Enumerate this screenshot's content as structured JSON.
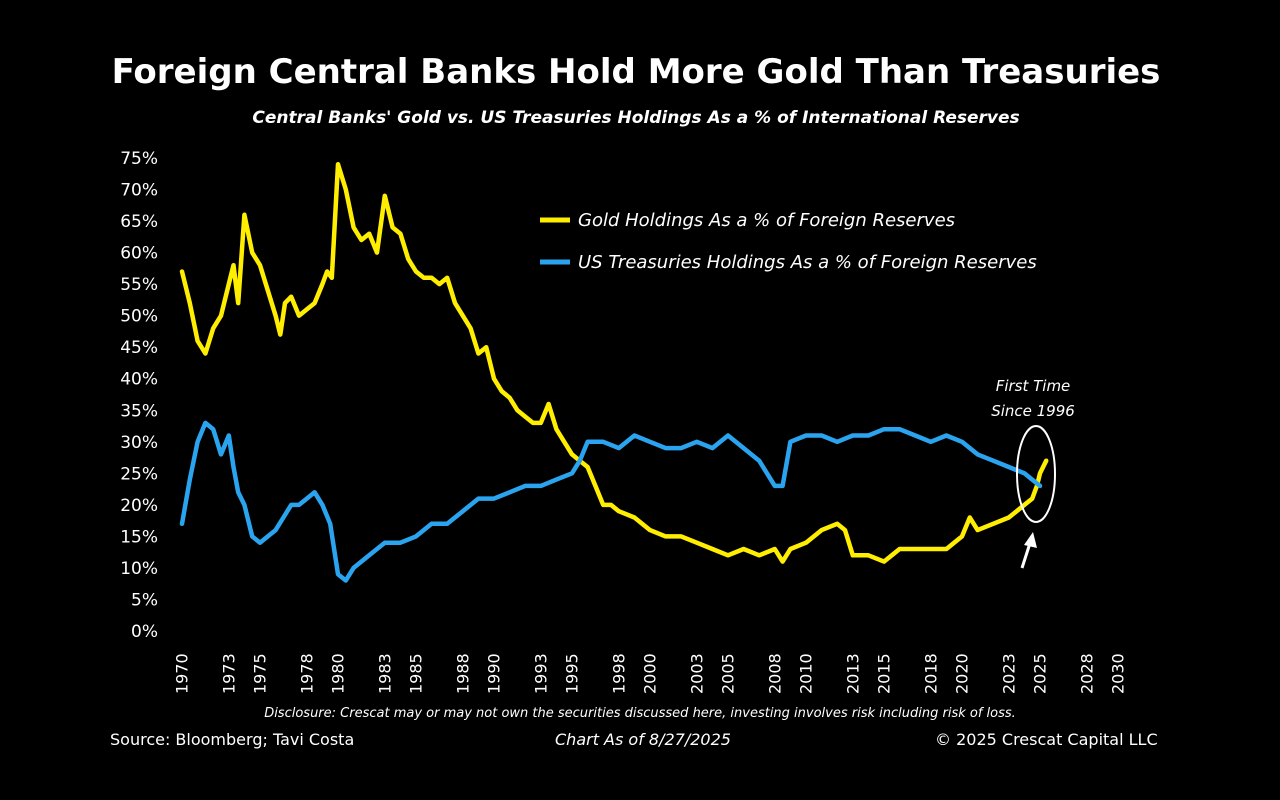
{
  "chart_data": {
    "type": "line",
    "title": "Foreign Central Banks Hold More Gold Than Treasuries",
    "subtitle": "Central Banks' Gold vs. US Treasuries Holdings As a % of International Reserves",
    "xlabel": "",
    "ylabel": "",
    "xlim": [
      1970,
      2030
    ],
    "ylim": [
      0,
      75
    ],
    "x_ticks": [
      "1970",
      "1973",
      "1975",
      "1978",
      "1980",
      "1983",
      "1985",
      "1988",
      "1990",
      "1993",
      "1995",
      "1998",
      "2000",
      "2003",
      "2005",
      "2008",
      "2010",
      "2013",
      "2015",
      "2018",
      "2020",
      "2023",
      "2025",
      "2028",
      "2030"
    ],
    "y_ticks": [
      "0%",
      "5%",
      "10%",
      "15%",
      "20%",
      "25%",
      "30%",
      "35%",
      "40%",
      "45%",
      "50%",
      "55%",
      "60%",
      "65%",
      "70%",
      "75%"
    ],
    "legend_position": "top-right",
    "series": [
      {
        "name": "Gold Holdings As a % of Foreign Reserves",
        "color": "#ffee00",
        "x": [
          1970,
          1970.5,
          1971,
          1971.5,
          1972,
          1972.5,
          1973,
          1973.3,
          1973.6,
          1974,
          1974.5,
          1975,
          1975.5,
          1976,
          1976.3,
          1976.6,
          1977,
          1977.5,
          1978,
          1978.5,
          1979,
          1979.3,
          1979.6,
          1980,
          1980.5,
          1981,
          1981.5,
          1982,
          1982.5,
          1983,
          1983.5,
          1984,
          1984.5,
          1985,
          1985.5,
          1986,
          1986.5,
          1987,
          1987.5,
          1988,
          1988.5,
          1989,
          1989.5,
          1990,
          1990.5,
          1991,
          1991.5,
          1992,
          1992.5,
          1993,
          1993.5,
          1994,
          1994.5,
          1995,
          1995.5,
          1996,
          1996.5,
          1997,
          1997.5,
          1998,
          1999,
          2000,
          2001,
          2002,
          2003,
          2004,
          2005,
          2006,
          2007,
          2008,
          2008.5,
          2009,
          2010,
          2011,
          2012,
          2012.5,
          2013,
          2014,
          2015,
          2016,
          2017,
          2018,
          2019,
          2020,
          2020.5,
          2021,
          2022,
          2023,
          2023.5,
          2024,
          2024.5,
          2024.8,
          2025,
          2025.4
        ],
        "values": [
          57,
          52,
          46,
          44,
          48,
          50,
          55,
          58,
          52,
          66,
          60,
          58,
          54,
          50,
          47,
          52,
          53,
          50,
          51,
          52,
          55,
          57,
          56,
          74,
          70,
          64,
          62,
          63,
          60,
          69,
          64,
          63,
          59,
          57,
          56,
          56,
          55,
          56,
          52,
          50,
          48,
          44,
          45,
          40,
          38,
          37,
          35,
          34,
          33,
          33,
          36,
          32,
          30,
          28,
          27,
          26,
          23,
          20,
          20,
          19,
          18,
          16,
          15,
          15,
          14,
          13,
          12,
          13,
          12,
          13,
          11,
          13,
          14,
          16,
          17,
          16,
          12,
          12,
          11,
          13,
          13,
          13,
          13,
          15,
          18,
          16,
          17,
          18,
          19,
          20,
          21,
          23,
          25,
          27
        ]
      },
      {
        "name": "US Treasuries Holdings As a % of Foreign Reserves",
        "color": "#2ba4f0",
        "x": [
          1970,
          1970.5,
          1971,
          1971.5,
          1972,
          1972.5,
          1973,
          1973.3,
          1973.6,
          1974,
          1974.5,
          1975,
          1975.5,
          1976,
          1976.5,
          1977,
          1977.5,
          1978,
          1978.5,
          1979,
          1979.5,
          1980,
          1980.5,
          1981,
          1982,
          1983,
          1984,
          1985,
          1986,
          1987,
          1988,
          1989,
          1990,
          1991,
          1992,
          1993,
          1994,
          1995,
          1995.5,
          1996,
          1996.5,
          1997,
          1998,
          1999,
          2000,
          2001,
          2002,
          2003,
          2004,
          2005,
          2006,
          2007,
          2007.5,
          2008,
          2008.5,
          2009,
          2010,
          2011,
          2012,
          2013,
          2014,
          2015,
          2016,
          2017,
          2018,
          2019,
          2020,
          2021,
          2022,
          2023,
          2024,
          2024.5,
          2025
        ],
        "values": [
          17,
          24,
          30,
          33,
          32,
          28,
          31,
          26,
          22,
          20,
          15,
          14,
          15,
          16,
          18,
          20,
          20,
          21,
          22,
          20,
          17,
          9,
          8,
          10,
          12,
          14,
          14,
          15,
          17,
          17,
          19,
          21,
          21,
          22,
          23,
          23,
          24,
          25,
          27,
          30,
          30,
          30,
          29,
          31,
          30,
          29,
          29,
          30,
          29,
          31,
          29,
          27,
          25,
          23,
          23,
          30,
          31,
          31,
          30,
          31,
          31,
          32,
          32,
          31,
          30,
          31,
          30,
          28,
          27,
          26,
          25,
          24,
          23
        ]
      }
    ],
    "annotation": "First Time\nSince 1996",
    "annotation_line1": "First Time",
    "annotation_line2": "Since 1996"
  },
  "footer": {
    "disclosure": "Disclosure: Crescat may or may not own the securities discussed here, investing involves risk including risk of loss.",
    "source": "Source: Bloomberg; Tavi Costa",
    "as_of": "Chart As of 8/27/2025",
    "copyright": "© 2025 Crescat Capital LLC"
  }
}
